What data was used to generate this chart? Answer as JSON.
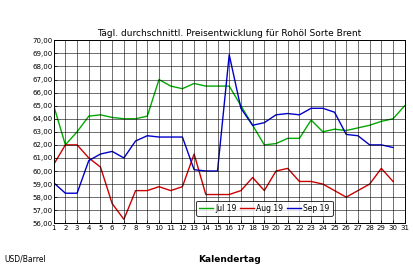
{
  "title": "Tägl. durchschnittl. Preisentwicklung für Rohöl Sorte Brent",
  "xlabel": "Kalendertag",
  "ylabel": "USD/Barrel",
  "ylim": [
    56.0,
    70.0
  ],
  "yticks": [
    56.0,
    57.0,
    58.0,
    59.0,
    60.0,
    61.0,
    62.0,
    63.0,
    64.0,
    65.0,
    66.0,
    67.0,
    68.0,
    69.0,
    70.0
  ],
  "xticks": [
    1,
    2,
    3,
    4,
    5,
    6,
    7,
    8,
    9,
    10,
    11,
    12,
    13,
    14,
    15,
    16,
    17,
    18,
    19,
    20,
    21,
    22,
    23,
    24,
    25,
    26,
    27,
    28,
    29,
    30,
    31
  ],
  "jul19_color": "#00AA00",
  "aug19_color": "#CC0000",
  "sep19_color": "#0000CC",
  "jul19": [
    65.0,
    62.0,
    63.0,
    64.2,
    64.3,
    64.1,
    64.0,
    64.0,
    64.2,
    67.0,
    66.5,
    66.3,
    66.7,
    66.5,
    66.5,
    66.5,
    65.0,
    63.5,
    62.0,
    62.1,
    62.5,
    62.5,
    63.9,
    63.0,
    63.2,
    63.1,
    63.3,
    63.5,
    63.8,
    64.0,
    65.0
  ],
  "aug19": [
    60.5,
    62.0,
    62.0,
    61.0,
    60.3,
    57.5,
    56.3,
    58.5,
    58.5,
    58.8,
    58.5,
    58.8,
    61.3,
    58.2,
    58.2,
    58.2,
    58.5,
    59.5,
    58.5,
    60.0,
    60.2,
    59.2,
    59.2,
    59.0,
    58.5,
    58.0,
    58.5,
    59.0,
    60.2,
    59.2,
    null
  ],
  "sep19": [
    59.1,
    58.3,
    58.3,
    60.8,
    61.3,
    61.5,
    61.0,
    62.3,
    62.7,
    62.6,
    62.6,
    62.6,
    60.1,
    60.0,
    60.0,
    68.9,
    64.8,
    63.5,
    63.7,
    64.3,
    64.4,
    64.3,
    64.8,
    64.8,
    64.5,
    62.8,
    62.7,
    62.0,
    62.0,
    61.8,
    null
  ],
  "grid_color": "#000000",
  "bg_color": "#FFFFFF"
}
